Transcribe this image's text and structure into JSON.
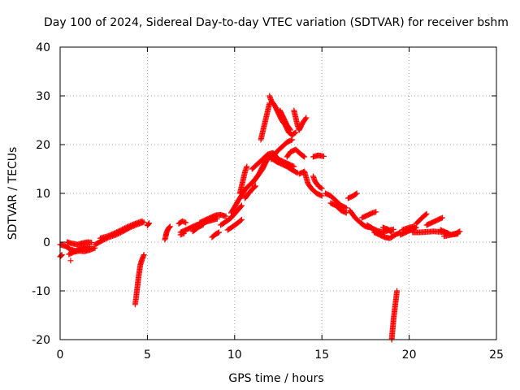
{
  "chart_data": {
    "type": "scatter",
    "title": "Day 100 of 2024, Sidereal Day-to-day VTEC variation (SDTVAR) for receiver bshm",
    "xlabel": "GPS time / hours",
    "ylabel": "SDTVAR / TECUs",
    "xlim": [
      0,
      25
    ],
    "ylim": [
      -20,
      40
    ],
    "xticks": [
      "0",
      "5",
      "10",
      "15",
      "20",
      "25"
    ],
    "yticks": [
      "-20",
      "-10",
      "0",
      "10",
      "20",
      "30",
      "40"
    ],
    "grid": true,
    "marker": "+",
    "series_color": "#ff0000",
    "segments": [
      {
        "name": "s01",
        "points": [
          [
            0.0,
            -0.5
          ],
          [
            0.3,
            -0.8
          ],
          [
            0.6,
            -1.5
          ],
          [
            0.9,
            -1.8
          ],
          [
            1.2,
            -1.2
          ],
          [
            1.5,
            -1.0
          ],
          [
            1.7,
            -0.9
          ]
        ]
      },
      {
        "name": "s02",
        "points": [
          [
            0.0,
            -3.0
          ],
          [
            0.1,
            -2.6
          ]
        ]
      },
      {
        "name": "s03",
        "points": [
          [
            0.4,
            0.0
          ],
          [
            0.7,
            -0.3
          ],
          [
            1.0,
            -0.5
          ],
          [
            1.3,
            -0.2
          ],
          [
            1.6,
            0.0
          ],
          [
            1.8,
            -0.1
          ]
        ]
      },
      {
        "name": "s04",
        "points": [
          [
            0.5,
            -2.5
          ],
          [
            0.8,
            -2.0
          ],
          [
            1.1,
            -1.8
          ],
          [
            1.4,
            -1.9
          ],
          [
            1.7,
            -1.6
          ],
          [
            2.0,
            -1.2
          ]
        ]
      },
      {
        "name": "s05",
        "points": [
          [
            0.6,
            -3.8
          ]
        ]
      },
      {
        "name": "s06",
        "points": [
          [
            2.0,
            -0.5
          ],
          [
            2.4,
            0.3
          ],
          [
            2.8,
            1.0
          ],
          [
            3.2,
            1.5
          ],
          [
            3.6,
            2.2
          ],
          [
            4.0,
            3.0
          ],
          [
            4.4,
            3.6
          ],
          [
            4.8,
            4.1
          ]
        ]
      },
      {
        "name": "s07",
        "points": [
          [
            2.3,
            0.8
          ],
          [
            2.7,
            1.2
          ],
          [
            3.1,
            1.8
          ],
          [
            3.5,
            2.5
          ],
          [
            3.9,
            3.2
          ],
          [
            4.3,
            3.8
          ],
          [
            4.7,
            4.3
          ]
        ]
      },
      {
        "name": "s08",
        "points": [
          [
            5.0,
            3.4
          ],
          [
            5.1,
            3.9
          ]
        ]
      },
      {
        "name": "s09",
        "points": [
          [
            4.3,
            -12.8
          ],
          [
            4.35,
            -11.5
          ],
          [
            4.4,
            -10.0
          ],
          [
            4.45,
            -8.5
          ],
          [
            4.5,
            -7.0
          ],
          [
            4.55,
            -5.8
          ],
          [
            4.6,
            -4.6
          ],
          [
            4.7,
            -3.5
          ],
          [
            4.8,
            -2.6
          ]
        ]
      },
      {
        "name": "s10",
        "points": [
          [
            6.0,
            0.5
          ],
          [
            6.05,
            1.2
          ],
          [
            6.1,
            2.0
          ],
          [
            6.2,
            2.8
          ],
          [
            6.3,
            3.2
          ]
        ]
      },
      {
        "name": "s11",
        "points": [
          [
            6.9,
            2.0
          ],
          [
            7.2,
            2.5
          ],
          [
            7.5,
            3.0
          ],
          [
            7.8,
            3.5
          ],
          [
            8.1,
            3.8
          ],
          [
            8.4,
            4.2
          ],
          [
            8.7,
            4.5
          ],
          [
            9.0,
            4.8
          ]
        ]
      },
      {
        "name": "s12",
        "points": [
          [
            6.8,
            3.8
          ],
          [
            7.0,
            4.3
          ],
          [
            7.2,
            4.0
          ]
        ]
      },
      {
        "name": "s13",
        "points": [
          [
            6.9,
            1.5
          ],
          [
            7.1,
            1.8
          ]
        ]
      },
      {
        "name": "s14",
        "points": [
          [
            7.6,
            2.2
          ],
          [
            7.9,
            3.0
          ],
          [
            8.2,
            3.6
          ]
        ]
      },
      {
        "name": "s15",
        "points": [
          [
            8.0,
            4.0
          ],
          [
            8.3,
            4.5
          ],
          [
            8.6,
            5.0
          ],
          [
            8.9,
            5.5
          ],
          [
            9.2,
            5.6
          ],
          [
            9.5,
            5.3
          ]
        ]
      },
      {
        "name": "s16",
        "points": [
          [
            8.7,
            1.0
          ],
          [
            8.9,
            1.6
          ],
          [
            9.1,
            2.0
          ]
        ]
      },
      {
        "name": "s17",
        "points": [
          [
            9.2,
            3.5
          ],
          [
            9.5,
            4.2
          ],
          [
            9.8,
            5.0
          ],
          [
            10.1,
            6.2
          ],
          [
            10.4,
            7.5
          ]
        ]
      },
      {
        "name": "s18",
        "points": [
          [
            9.6,
            2.5
          ],
          [
            9.9,
            3.2
          ],
          [
            10.2,
            4.0
          ],
          [
            10.4,
            4.6
          ]
        ]
      },
      {
        "name": "s19",
        "points": [
          [
            9.8,
            6.0
          ],
          [
            10.0,
            7.2
          ],
          [
            10.2,
            8.5
          ],
          [
            10.4,
            9.6
          ],
          [
            10.6,
            10.8
          ],
          [
            10.8,
            11.5
          ],
          [
            11.0,
            12.2
          ],
          [
            11.2,
            13.0
          ],
          [
            11.4,
            14.0
          ],
          [
            11.6,
            15.0
          ],
          [
            11.8,
            16.5
          ],
          [
            12.0,
            17.5
          ],
          [
            12.2,
            18.0
          ]
        ]
      },
      {
        "name": "s20",
        "points": [
          [
            10.3,
            10.0
          ],
          [
            10.4,
            11.5
          ],
          [
            10.5,
            13.0
          ],
          [
            10.6,
            14.5
          ],
          [
            10.7,
            15.5
          ]
        ]
      },
      {
        "name": "s21",
        "points": [
          [
            10.6,
            9.0
          ],
          [
            10.8,
            10.0
          ],
          [
            11.0,
            10.8
          ],
          [
            11.2,
            11.5
          ]
        ]
      },
      {
        "name": "s22",
        "points": [
          [
            11.0,
            12.0
          ],
          [
            11.2,
            13.0
          ],
          [
            11.4,
            14.0
          ],
          [
            11.6,
            15.5
          ],
          [
            11.8,
            16.8
          ],
          [
            12.0,
            17.5
          ],
          [
            12.2,
            17.0
          ],
          [
            12.4,
            16.5
          ],
          [
            12.7,
            16.0
          ],
          [
            13.0,
            15.5
          ],
          [
            13.3,
            14.8
          ],
          [
            13.6,
            14.2
          ]
        ]
      },
      {
        "name": "s23",
        "points": [
          [
            11.0,
            15.0
          ],
          [
            11.3,
            16.0
          ],
          [
            11.6,
            17.0
          ],
          [
            11.9,
            18.0
          ],
          [
            12.2,
            18.3
          ],
          [
            12.5,
            17.0
          ],
          [
            12.8,
            16.5
          ],
          [
            13.1,
            16.0
          ],
          [
            13.4,
            15.5
          ]
        ]
      },
      {
        "name": "s24",
        "points": [
          [
            12.0,
            30.0
          ],
          [
            12.1,
            29.0
          ],
          [
            12.3,
            28.0
          ],
          [
            12.5,
            26.5
          ],
          [
            12.7,
            25.0
          ],
          [
            12.9,
            24.0
          ],
          [
            13.1,
            22.5
          ],
          [
            13.3,
            22.0
          ],
          [
            13.5,
            22.5
          ]
        ]
      },
      {
        "name": "s25",
        "points": [
          [
            11.5,
            21.0
          ],
          [
            11.6,
            22.5
          ],
          [
            11.7,
            24.0
          ],
          [
            11.8,
            25.5
          ],
          [
            11.9,
            27.0
          ],
          [
            12.0,
            28.5
          ]
        ]
      },
      {
        "name": "s26",
        "points": [
          [
            12.6,
            27.0
          ],
          [
            12.8,
            25.5
          ],
          [
            13.0,
            24.0
          ],
          [
            13.2,
            23.0
          ]
        ]
      },
      {
        "name": "s27",
        "points": [
          [
            13.4,
            27.0
          ],
          [
            13.5,
            25.5
          ],
          [
            13.6,
            24.0
          ],
          [
            13.7,
            23.0
          ],
          [
            13.9,
            24.5
          ],
          [
            14.1,
            25.5
          ]
        ]
      },
      {
        "name": "s28",
        "points": [
          [
            12.1,
            17.0
          ],
          [
            12.4,
            18.5
          ],
          [
            12.7,
            19.5
          ],
          [
            13.0,
            20.5
          ],
          [
            13.3,
            21.0
          ]
        ]
      },
      {
        "name": "s29",
        "points": [
          [
            13.0,
            17.5
          ],
          [
            13.2,
            18.5
          ],
          [
            13.5,
            19.0
          ],
          [
            13.8,
            18.0
          ],
          [
            14.0,
            17.5
          ]
        ]
      },
      {
        "name": "s30",
        "points": [
          [
            13.7,
            14.0
          ],
          [
            14.0,
            14.5
          ],
          [
            14.2,
            12.0
          ],
          [
            14.4,
            11.0
          ],
          [
            14.7,
            10.0
          ],
          [
            15.0,
            9.5
          ]
        ]
      },
      {
        "name": "s31",
        "points": [
          [
            14.5,
            13.5
          ],
          [
            14.6,
            12.5
          ],
          [
            14.8,
            11.5
          ],
          [
            15.0,
            11.0
          ]
        ]
      },
      {
        "name": "s32",
        "points": [
          [
            14.5,
            17.5
          ],
          [
            14.8,
            17.8
          ],
          [
            15.1,
            17.6
          ]
        ]
      },
      {
        "name": "s33",
        "points": [
          [
            15.2,
            10.0
          ],
          [
            15.5,
            9.5
          ],
          [
            15.8,
            8.5
          ],
          [
            16.1,
            7.5
          ],
          [
            16.4,
            7.0
          ]
        ]
      },
      {
        "name": "s34",
        "points": [
          [
            15.5,
            8.0
          ],
          [
            15.8,
            7.5
          ],
          [
            16.1,
            6.5
          ],
          [
            16.4,
            6.0
          ]
        ]
      },
      {
        "name": "s35",
        "points": [
          [
            16.5,
            9.0
          ],
          [
            16.8,
            9.5
          ],
          [
            17.0,
            10.0
          ]
        ]
      },
      {
        "name": "s36",
        "points": [
          [
            16.6,
            6.5
          ],
          [
            16.9,
            5.0
          ],
          [
            17.2,
            4.0
          ],
          [
            17.5,
            3.2
          ],
          [
            17.8,
            3.0
          ],
          [
            18.0,
            2.5
          ]
        ]
      },
      {
        "name": "s37",
        "points": [
          [
            17.3,
            5.0
          ],
          [
            17.6,
            5.5
          ],
          [
            17.9,
            6.0
          ],
          [
            18.1,
            6.2
          ]
        ]
      },
      {
        "name": "s38",
        "points": [
          [
            17.6,
            3.5
          ],
          [
            17.9,
            2.8
          ],
          [
            18.2,
            2.3
          ],
          [
            18.5,
            2.0
          ],
          [
            18.8,
            2.4
          ],
          [
            19.1,
            2.6
          ]
        ]
      },
      {
        "name": "s39",
        "points": [
          [
            18.0,
            2.0
          ],
          [
            18.3,
            1.5
          ],
          [
            18.6,
            1.0
          ],
          [
            18.9,
            0.8
          ],
          [
            19.2,
            1.5
          ],
          [
            19.5,
            2.0
          ]
        ]
      },
      {
        "name": "s40",
        "points": [
          [
            18.5,
            3.0
          ],
          [
            18.8,
            2.6
          ],
          [
            19.0,
            2.0
          ]
        ]
      },
      {
        "name": "s41",
        "points": [
          [
            19.0,
            -20.0
          ],
          [
            19.05,
            -18.0
          ],
          [
            19.1,
            -16.0
          ],
          [
            19.15,
            -14.5
          ],
          [
            19.2,
            -13.0
          ],
          [
            19.25,
            -11.5
          ],
          [
            19.3,
            -10.0
          ]
        ]
      },
      {
        "name": "s42",
        "points": [
          [
            19.5,
            1.5
          ],
          [
            19.8,
            2.0
          ],
          [
            20.1,
            2.5
          ],
          [
            20.4,
            3.0
          ]
        ]
      },
      {
        "name": "s43",
        "points": [
          [
            19.6,
            2.5
          ],
          [
            20.0,
            3.0
          ],
          [
            20.3,
            3.2
          ]
        ]
      },
      {
        "name": "s44",
        "points": [
          [
            20.2,
            2.0
          ],
          [
            20.6,
            2.0
          ],
          [
            21.0,
            2.1
          ],
          [
            21.4,
            2.2
          ],
          [
            21.8,
            2.1
          ],
          [
            22.2,
            1.9
          ]
        ]
      },
      {
        "name": "s45",
        "points": [
          [
            20.4,
            3.8
          ],
          [
            20.6,
            4.5
          ],
          [
            20.8,
            5.2
          ],
          [
            21.0,
            5.8
          ]
        ]
      },
      {
        "name": "s46",
        "points": [
          [
            21.0,
            3.5
          ],
          [
            21.3,
            4.0
          ],
          [
            21.6,
            4.5
          ],
          [
            21.9,
            5.0
          ]
        ]
      },
      {
        "name": "s47",
        "points": [
          [
            21.8,
            2.5
          ],
          [
            22.1,
            2.0
          ],
          [
            22.4,
            1.5
          ],
          [
            22.7,
            1.8
          ],
          [
            22.9,
            2.2
          ]
        ]
      },
      {
        "name": "s48",
        "points": [
          [
            22.0,
            1.2
          ],
          [
            22.4,
            1.5
          ],
          [
            22.8,
            1.7
          ]
        ]
      }
    ]
  }
}
